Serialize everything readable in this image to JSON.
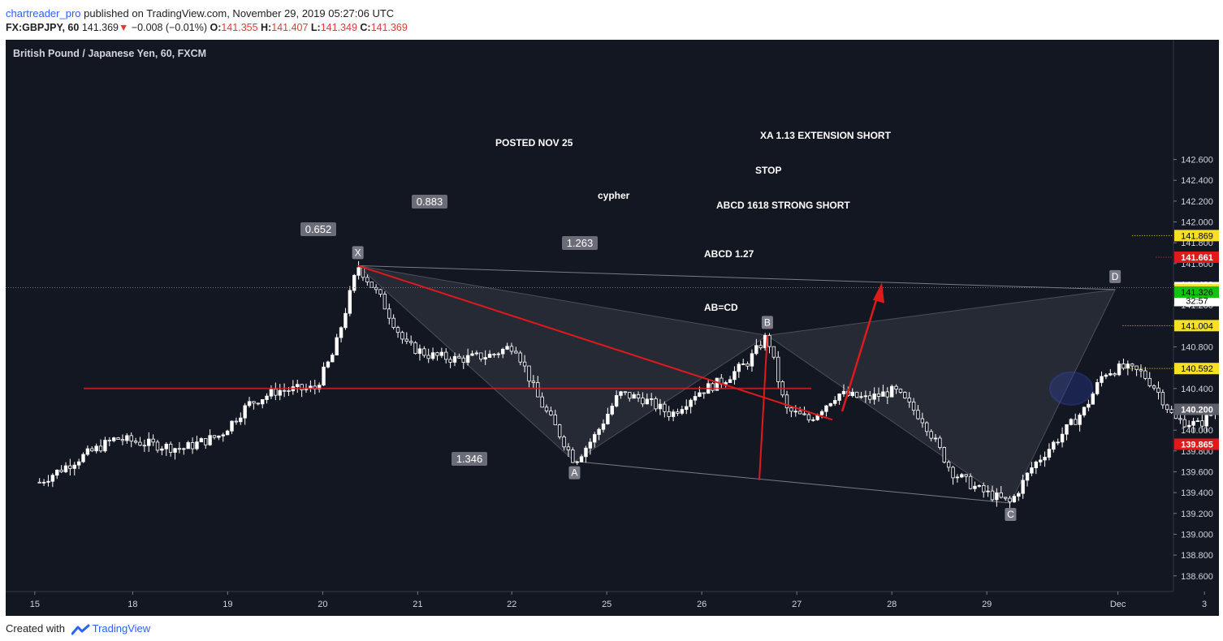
{
  "header": {
    "author": "chartreader_pro",
    "published_text": " published on TradingView.com, November 29, 2019 05:27:06 UTC",
    "symbol": "FX:GBPJPY, 60",
    "last": "141.369",
    "change_arrow": "▼",
    "change": "−0.008 (−0.01%)",
    "o_label": "O:",
    "o_value": "141.355",
    "h_label": "H:",
    "h_value": "141.407",
    "l_label": "L:",
    "l_value": "141.349",
    "c_label": "C:",
    "c_value": "141.369"
  },
  "footer": {
    "created_with": "Created with",
    "brand": "TradingView"
  },
  "colors": {
    "background": "#131722",
    "up": "#ffffff",
    "down": "#ffffff",
    "pattern_fill": "#363a45",
    "trendline": "#e0191b",
    "dotted_yellow": "#f5e025",
    "dotted_red": "#e53935",
    "long_profit": "#1b5e20",
    "long_loss": "#4a1c24",
    "axis_text": "#d1d4dc"
  },
  "chart_data": {
    "type": "candlestick",
    "title": "British Pound / Japanese Yen, 60, FXCM",
    "ylim": [
      138.45,
      143.75
    ],
    "y_ticks": [
      "142.600",
      "142.400",
      "142.200",
      "142.000",
      "141.800",
      "141.600",
      "141.400",
      "141.200",
      "141.000",
      "140.800",
      "140.600",
      "140.400",
      "140.200",
      "140.000",
      "139.800",
      "139.600",
      "139.400",
      "139.200",
      "139.000",
      "138.800",
      "138.600"
    ],
    "x_ticks": [
      "15",
      "18",
      "19",
      "20",
      "21",
      "22",
      "25",
      "26",
      "27",
      "28",
      "29",
      "Dec",
      "3"
    ],
    "price_badges": [
      {
        "value": "141.869",
        "style": "yellow"
      },
      {
        "value": "141.661",
        "style": "red"
      },
      {
        "value": "141.369",
        "style": "last"
      },
      {
        "value": "32:57",
        "style": "timer"
      },
      {
        "value": "141.348",
        "style": "yellow"
      },
      {
        "value": "141.326",
        "style": "green"
      },
      {
        "value": "141.004",
        "style": "yellow"
      },
      {
        "value": "140.592",
        "style": "yellow"
      },
      {
        "value": "140.200",
        "style": "gray"
      },
      {
        "value": "139.865",
        "style": "red"
      }
    ],
    "pattern_points": [
      {
        "label": "X",
        "time": 3.45,
        "price": 141.58
      },
      {
        "label": "A",
        "time": 5.73,
        "price": 139.7
      },
      {
        "label": "B",
        "time": 7.76,
        "price": 140.91
      },
      {
        "label": "C",
        "time": 10.32,
        "price": 139.3
      },
      {
        "label": "D",
        "time": 11.42,
        "price": 141.35
      }
    ],
    "ratios": [
      {
        "value": "0.652",
        "legs": "XA-AB"
      },
      {
        "value": "1.263",
        "legs": "AB-BD"
      },
      {
        "value": "0.883",
        "legs": "XD"
      },
      {
        "value": "1.346",
        "legs": "AC"
      }
    ],
    "annotations": [
      "POSTED NOV 25",
      "cypher",
      "XA 1.13 EXTENSION SHORT",
      "STOP",
      "ABCD 1618 STRONG SHORT",
      "ABCD 1.27",
      "AB=CD"
    ],
    "levels": [
      {
        "price": 141.869,
        "type": "dotted-yellow"
      },
      {
        "price": 141.661,
        "type": "dotted-red"
      },
      {
        "price": 141.004,
        "type": "dotted-yellow"
      },
      {
        "price": 140.592,
        "type": "dotted-yellow"
      },
      {
        "price": 141.369,
        "type": "dotted-gray"
      }
    ],
    "position": {
      "type": "long",
      "entry": 140.2,
      "target": 141.348,
      "stop": 139.865
    },
    "candles_note": "hourly GBPJPY candles approximated from the image",
    "path": [
      [
        0.1,
        139.5
      ],
      [
        0.5,
        139.72
      ],
      [
        0.9,
        139.92
      ],
      [
        1.3,
        139.86
      ],
      [
        1.6,
        139.82
      ],
      [
        2.0,
        139.95
      ],
      [
        2.3,
        140.25
      ],
      [
        2.6,
        140.38
      ],
      [
        3.0,
        140.4
      ],
      [
        3.2,
        140.75
      ],
      [
        3.45,
        141.58
      ],
      [
        3.7,
        141.25
      ],
      [
        3.95,
        140.82
      ],
      [
        4.2,
        140.72
      ],
      [
        4.5,
        140.68
      ],
      [
        4.85,
        140.72
      ],
      [
        5.1,
        140.82
      ],
      [
        5.35,
        140.3
      ],
      [
        5.55,
        140.0
      ],
      [
        5.73,
        139.7
      ],
      [
        5.95,
        139.95
      ],
      [
        6.2,
        140.35
      ],
      [
        6.45,
        140.3
      ],
      [
        6.75,
        140.15
      ],
      [
        7.0,
        140.35
      ],
      [
        7.3,
        140.48
      ],
      [
        7.55,
        140.65
      ],
      [
        7.76,
        140.91
      ],
      [
        7.95,
        140.2
      ],
      [
        8.2,
        140.1
      ],
      [
        8.5,
        140.35
      ],
      [
        8.8,
        140.3
      ],
      [
        9.1,
        140.38
      ],
      [
        9.4,
        140.1
      ],
      [
        9.7,
        139.6
      ],
      [
        10.0,
        139.42
      ],
      [
        10.32,
        139.3
      ],
      [
        10.55,
        139.65
      ],
      [
        10.8,
        139.9
      ],
      [
        11.1,
        140.2
      ],
      [
        11.3,
        140.55
      ],
      [
        11.5,
        140.6
      ],
      [
        11.7,
        140.55
      ],
      [
        11.85,
        140.4
      ],
      [
        12.05,
        140.1
      ],
      [
        12.3,
        140.05
      ],
      [
        12.55,
        140.25
      ],
      [
        12.8,
        140.28
      ],
      [
        13.05,
        140.25
      ],
      [
        13.25,
        140.3
      ],
      [
        13.5,
        140.6
      ],
      [
        13.7,
        140.9
      ],
      [
        13.85,
        141.35
      ],
      [
        14.0,
        141.82
      ],
      [
        14.2,
        141.4
      ],
      [
        14.45,
        141.6
      ],
      [
        14.65,
        141.5
      ],
      [
        14.85,
        141.42
      ],
      [
        15.05,
        141.37
      ],
      [
        15.25,
        141.38
      ],
      [
        15.45,
        141.37
      ],
      [
        15.6,
        141.37
      ]
    ]
  }
}
